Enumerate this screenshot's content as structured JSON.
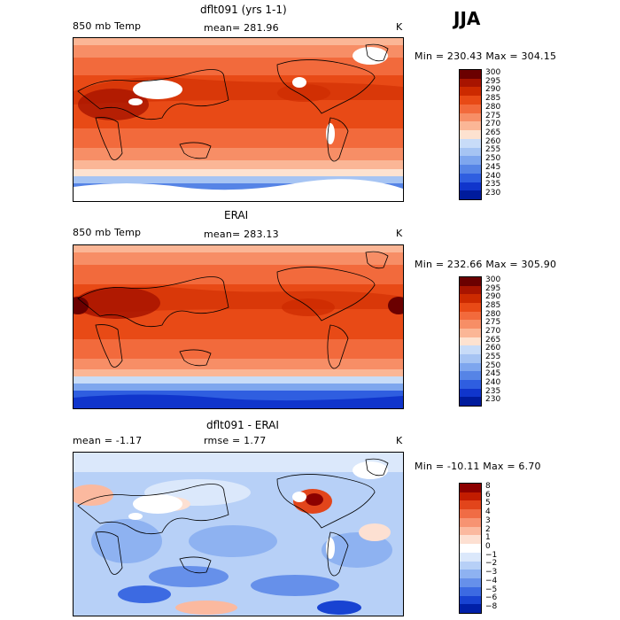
{
  "season": "JJA",
  "panels": [
    {
      "id": "model",
      "title": "dflt091 (yrs 1-1)",
      "left_label": "850 mb Temp",
      "center_label": "mean= 281.96",
      "unit": "K",
      "minmax": "Min = 230.43 Max = 304.15",
      "colorbar": {
        "levels": [
          "300",
          "295",
          "290",
          "285",
          "280",
          "275",
          "270",
          "265",
          "260",
          "255",
          "250",
          "245",
          "240",
          "235",
          "230"
        ],
        "colors": [
          "#6b0000",
          "#a81400",
          "#cc2a00",
          "#e84a16",
          "#f26a3c",
          "#f78e66",
          "#fbb696",
          "#fde2d0",
          "#c8dcf8",
          "#a6c4f3",
          "#7ea6ee",
          "#5684e6",
          "#2f5ee0",
          "#1035cc",
          "#001b9c"
        ]
      }
    },
    {
      "id": "obs",
      "title": "ERAI",
      "left_label": "850 mb Temp",
      "center_label": "mean= 283.13",
      "unit": "K",
      "minmax": "Min = 232.66 Max = 305.90",
      "colorbar": {
        "levels": [
          "300",
          "295",
          "290",
          "285",
          "280",
          "275",
          "270",
          "265",
          "260",
          "255",
          "250",
          "245",
          "240",
          "235",
          "230"
        ],
        "colors": [
          "#6b0000",
          "#a81400",
          "#cc2a00",
          "#e84a16",
          "#f26a3c",
          "#f78e66",
          "#fbb696",
          "#fde2d0",
          "#c8dcf8",
          "#a6c4f3",
          "#7ea6ee",
          "#5684e6",
          "#2f5ee0",
          "#1035cc",
          "#001b9c"
        ]
      }
    },
    {
      "id": "diff",
      "title": "dflt091 - ERAI",
      "left_label": "mean =   -1.17",
      "center_label": "rmse =   1.77",
      "unit": "K",
      "minmax": "Min = -10.11 Max =   6.70",
      "colorbar": {
        "levels": [
          "8",
          "6",
          "5",
          "4",
          "3",
          "2",
          "1",
          "0",
          "−1",
          "−2",
          "−3",
          "−4",
          "−5",
          "−6",
          "−8"
        ],
        "colors": [
          "#8c0000",
          "#c21c00",
          "#e2451b",
          "#f06c45",
          "#f79372",
          "#fbb99f",
          "#fde0d2",
          "#ffffff",
          "#dbe8fb",
          "#b7d0f7",
          "#8eb2f1",
          "#6690ea",
          "#3c6ae2",
          "#1843d2",
          "#0020a8"
        ]
      }
    }
  ]
}
